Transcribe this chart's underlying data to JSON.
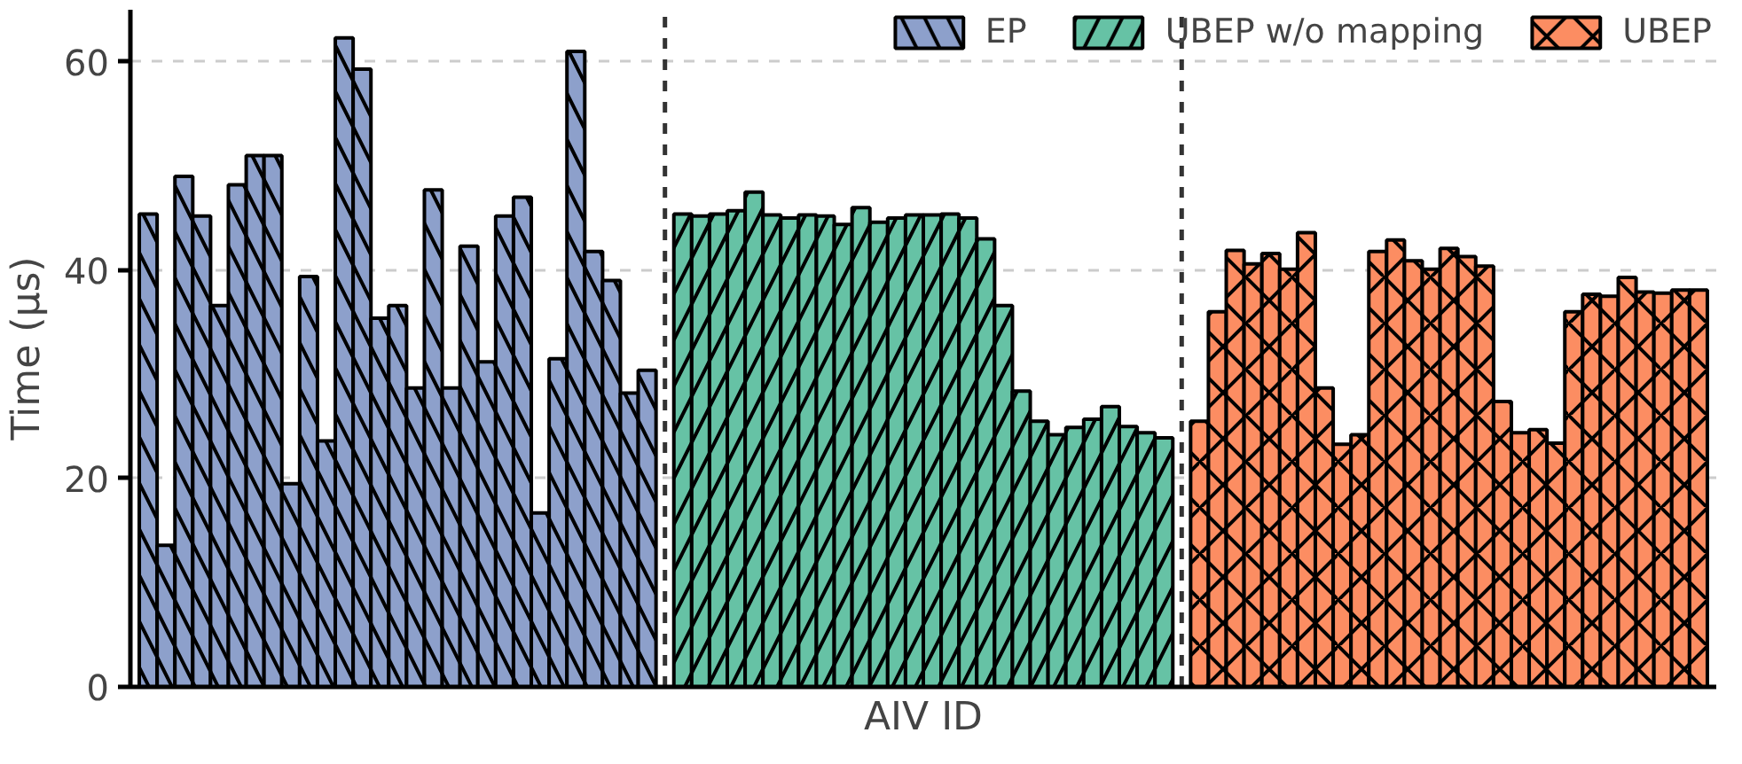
{
  "chart_data": {
    "type": "bar",
    "xlabel": "AIV ID",
    "ylabel": "Time (µs)",
    "categories": [
      null,
      null,
      null,
      null,
      null,
      null,
      null,
      null,
      null,
      null,
      null,
      null,
      null,
      null,
      null,
      null,
      null,
      null,
      null,
      null,
      null,
      null,
      null,
      null,
      null,
      null,
      null,
      null,
      null,
      null,
      null,
      null,
      null,
      null,
      null,
      null,
      null,
      null,
      null,
      null,
      null,
      null,
      null,
      null,
      null,
      null,
      null,
      null,
      null,
      null,
      null,
      null,
      null,
      null,
      null,
      null,
      null,
      null,
      null,
      null,
      null,
      null,
      null,
      null,
      null,
      null,
      null,
      null,
      null,
      null,
      null,
      null,
      null,
      null,
      null,
      null,
      null,
      null,
      null,
      null,
      null,
      null,
      null,
      null,
      null,
      null,
      null,
      null
    ],
    "series": [
      {
        "name": "EP",
        "color": "#8da0cb",
        "values": [
          45.4,
          13.6,
          49.0,
          45.2,
          36.6,
          48.2,
          51.0,
          51.0,
          19.5,
          39.4,
          23.6,
          62.3,
          59.3,
          35.4,
          36.6,
          28.7,
          47.7,
          28.7,
          42.3,
          31.2,
          45.2,
          47.0,
          16.7,
          31.5,
          61.0,
          41.8,
          39.0,
          28.2,
          30.4,
          null,
          null,
          null,
          null,
          null,
          null,
          null,
          null,
          null,
          null,
          null,
          null,
          null,
          null,
          null,
          null,
          null,
          null,
          null,
          null,
          null,
          null,
          null,
          null,
          null,
          null,
          null,
          null,
          null,
          null,
          null,
          null,
          null,
          null,
          null,
          null,
          null,
          null,
          null,
          null,
          null,
          null,
          null,
          null,
          null,
          null,
          null,
          null,
          null,
          null,
          null,
          null,
          null,
          null,
          null,
          null,
          null,
          null,
          null
        ]
      },
      {
        "name": "UBEP w/o mapping",
        "color": "#66c2a5",
        "values": [
          null,
          null,
          null,
          null,
          null,
          null,
          null,
          null,
          null,
          null,
          null,
          null,
          null,
          null,
          null,
          null,
          null,
          null,
          null,
          null,
          null,
          null,
          null,
          null,
          null,
          null,
          null,
          null,
          null,
          null,
          45.4,
          45.2,
          45.4,
          45.7,
          47.5,
          45.3,
          45.0,
          45.3,
          45.2,
          44.4,
          46.0,
          44.6,
          45.0,
          45.3,
          45.3,
          45.4,
          45.0,
          43.0,
          36.6,
          28.4,
          25.5,
          24.2,
          24.9,
          25.7,
          26.9,
          25.0,
          24.4,
          23.9,
          null,
          null,
          null,
          null,
          null,
          null,
          null,
          null,
          null,
          null,
          null,
          null,
          null,
          null,
          null,
          null,
          null,
          null,
          null,
          null,
          null,
          null,
          null,
          null,
          null,
          null,
          null,
          null,
          null,
          null
        ]
      },
      {
        "name": "UBEP",
        "color": "#fc8d62",
        "values": [
          null,
          null,
          null,
          null,
          null,
          null,
          null,
          null,
          null,
          null,
          null,
          null,
          null,
          null,
          null,
          null,
          null,
          null,
          null,
          null,
          null,
          null,
          null,
          null,
          null,
          null,
          null,
          null,
          null,
          null,
          null,
          null,
          null,
          null,
          null,
          null,
          null,
          null,
          null,
          null,
          null,
          null,
          null,
          null,
          null,
          null,
          null,
          null,
          null,
          null,
          null,
          null,
          null,
          null,
          null,
          null,
          null,
          null,
          null,
          25.5,
          36.0,
          41.9,
          40.6,
          41.6,
          40.1,
          43.6,
          28.7,
          23.3,
          24.2,
          41.8,
          42.9,
          40.9,
          40.1,
          42.1,
          41.3,
          40.4,
          27.4,
          24.4,
          24.7,
          23.4,
          36.0,
          37.7,
          37.5,
          39.3,
          37.9,
          37.8,
          38.1,
          38.1
        ]
      }
    ],
    "ylim": [
      0,
      65
    ],
    "yticks": [
      0,
      20,
      40,
      60
    ],
    "tick_labels": "y",
    "grid": "y",
    "legend": "top right"
  }
}
